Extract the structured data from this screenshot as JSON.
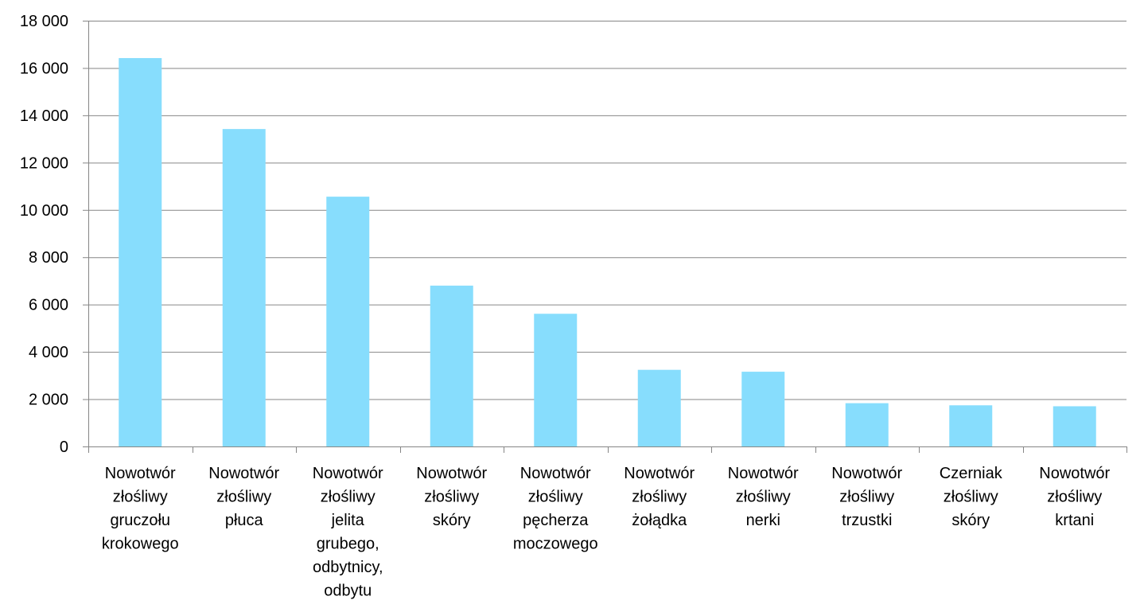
{
  "chart_data": {
    "type": "bar",
    "title": "",
    "xlabel": "",
    "ylabel": "",
    "ylim": [
      0,
      18000
    ],
    "y_ticks": [
      0,
      2000,
      4000,
      6000,
      8000,
      10000,
      12000,
      14000,
      16000,
      18000
    ],
    "y_tick_labels": [
      "0",
      "2 000",
      "4 000",
      "6 000",
      "8 000",
      "10 000",
      "12 000",
      "14 000",
      "16 000",
      "18 000"
    ],
    "grid": true,
    "legend": "none",
    "bar_color": "#87DDFD",
    "grid_color": "#868686",
    "categories": [
      [
        "Nowotwór",
        "złośliwy",
        "gruczołu",
        "krokowego"
      ],
      [
        "Nowotwór",
        "złośliwy",
        "płuca"
      ],
      [
        "Nowotwór",
        "złośliwy",
        "jelita",
        "grubego,",
        "odbytnicy,",
        "odbytu"
      ],
      [
        "Nowotwór",
        "złośliwy",
        "skóry"
      ],
      [
        "Nowotwór",
        "złośliwy",
        "pęcherza",
        "moczowego"
      ],
      [
        "Nowotwór",
        "złośliwy",
        "żołądka"
      ],
      [
        "Nowotwór",
        "złośliwy",
        "nerki"
      ],
      [
        "Nowotwór",
        "złośliwy",
        "trzustki"
      ],
      [
        "Czerniak",
        "złośliwy",
        "skóry"
      ],
      [
        "Nowotwór",
        "złośliwy",
        "krtani"
      ]
    ],
    "values": [
      16420,
      13420,
      10560,
      6800,
      5610,
      3240,
      3160,
      1830,
      1740,
      1700
    ]
  }
}
